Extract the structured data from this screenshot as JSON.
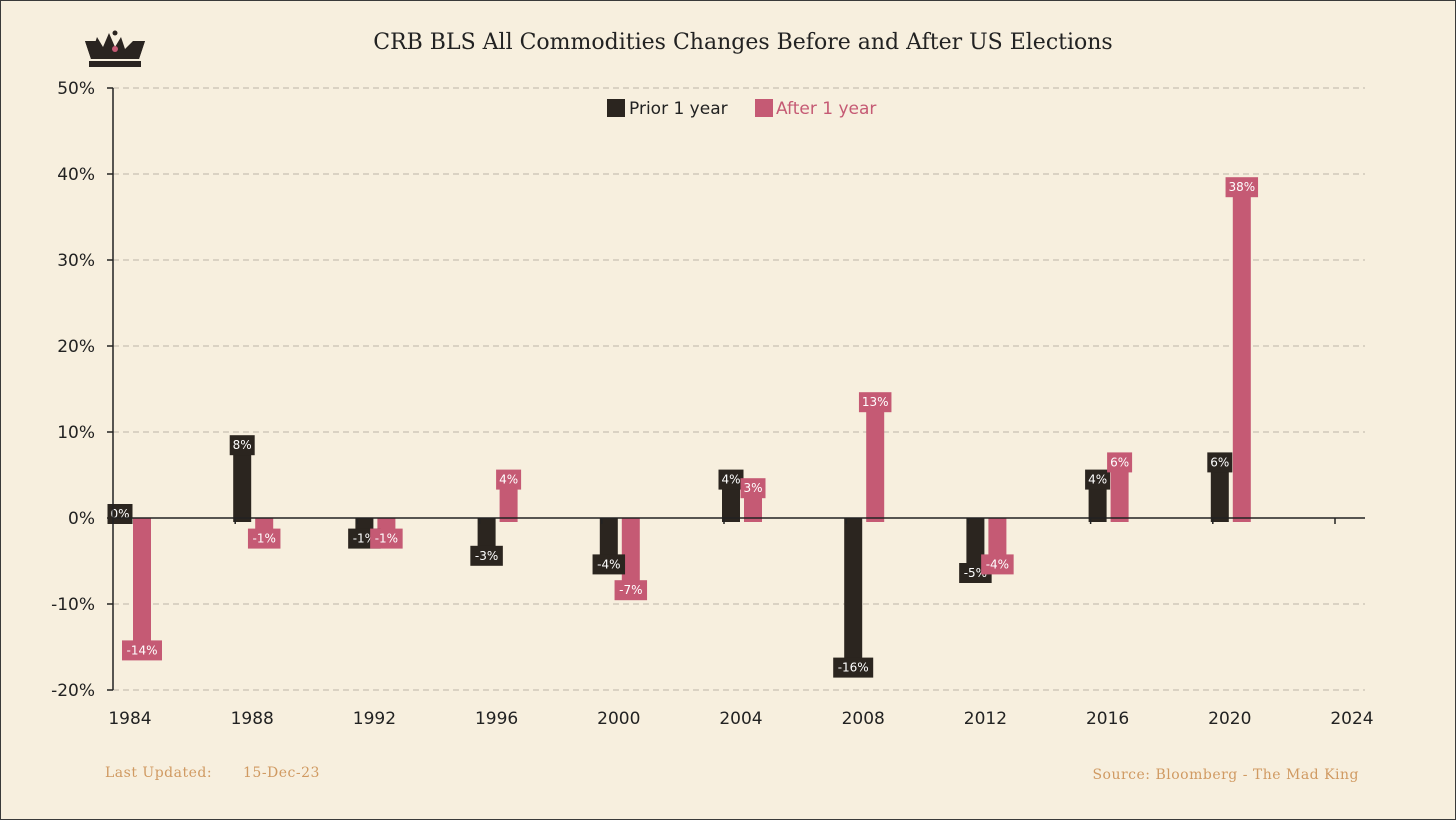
{
  "colors": {
    "background": "#f7efde",
    "prior": "#2b251f",
    "after": "#c55a74",
    "footer": "#d09a62",
    "logo": "#2a2420"
  },
  "logo": {
    "icon": "crown-icon"
  },
  "footer": {
    "updated_label": "Last Updated:",
    "updated_value": "15-Dec-23",
    "source": "Source: Bloomberg - The Mad King"
  },
  "chart_data": {
    "type": "bar",
    "title": "CRB BLS All Commodities Changes Before and After US Elections",
    "xlabel": "",
    "ylabel": "",
    "categories": [
      "1984",
      "1988",
      "1992",
      "1996",
      "2000",
      "2004",
      "2008",
      "2012",
      "2016",
      "2020",
      "2024"
    ],
    "ylim": [
      -20,
      50
    ],
    "yticks": [
      -20,
      -10,
      0,
      10,
      20,
      30,
      40,
      50
    ],
    "ytick_labels": [
      "-20%",
      "-10%",
      "0%",
      "10%",
      "20%",
      "30%",
      "40%",
      "50%"
    ],
    "grid": true,
    "legend": "top-center",
    "series": [
      {
        "name": "Prior 1 year",
        "values": [
          0,
          8,
          -1,
          -3,
          -4,
          4,
          -16,
          -5,
          4,
          6,
          null
        ],
        "labels": [
          "0%",
          "8%",
          "-1%",
          "-3%",
          "-4%",
          "4%",
          "-16%",
          "-5%",
          "4%",
          "6%",
          null
        ]
      },
      {
        "name": "After 1 year",
        "values": [
          -14,
          -1,
          -1,
          4,
          -7,
          3,
          13,
          -4,
          6,
          38,
          null
        ],
        "labels": [
          "-14%",
          "-1%",
          "-1%",
          "4%",
          "-7%",
          "3%",
          "13%",
          "-4%",
          "6%",
          "38%",
          null
        ]
      }
    ]
  }
}
